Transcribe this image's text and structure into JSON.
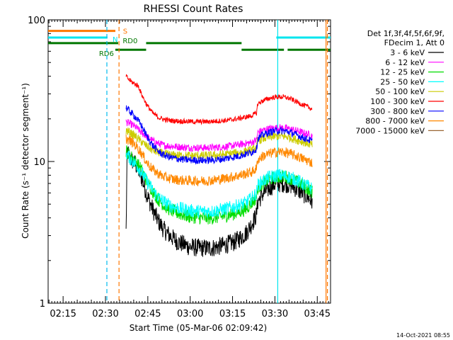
{
  "chart_data": {
    "type": "line",
    "title": "RHESSI Count Rates",
    "xlabel": "Start Time (05-Mar-06 02:09:42)",
    "ylabel": "Count Rate (s⁻¹ detector segment⁻¹)",
    "yscale": "log",
    "ylim": [
      1,
      100
    ],
    "xlim_minutes": [
      0,
      100
    ],
    "x_ticks": [
      "02:15",
      "02:30",
      "02:45",
      "03:00",
      "03:15",
      "03:30",
      "03:45"
    ],
    "y_ticks": [
      "1",
      "10",
      "100"
    ],
    "info": [
      "Det 1f,3f,4f,5f,6f,9f,",
      "FDecim 1, Att 0"
    ],
    "footer_date": "14-Oct-2021 08:55",
    "series": [
      {
        "name": "3 - 6 keV",
        "color": "#000000",
        "noise": 0.55,
        "points": [
          [
            27.6,
            3.2
          ],
          [
            28,
            12
          ],
          [
            29,
            10.5
          ],
          [
            31,
            9.5
          ],
          [
            33,
            7.8
          ],
          [
            35,
            5.8
          ],
          [
            37,
            4.6
          ],
          [
            39,
            3.8
          ],
          [
            41,
            3.3
          ],
          [
            43,
            3.0
          ],
          [
            46,
            2.7
          ],
          [
            50,
            2.5
          ],
          [
            54,
            2.45
          ],
          [
            58,
            2.45
          ],
          [
            62,
            2.55
          ],
          [
            66,
            2.7
          ],
          [
            70,
            3.1
          ],
          [
            72,
            3.6
          ],
          [
            73.8,
            4.2
          ],
          [
            74.2,
            5.2
          ],
          [
            76,
            5.9
          ],
          [
            78,
            6.4
          ],
          [
            80,
            6.9
          ],
          [
            82,
            7.0
          ],
          [
            84,
            7.0
          ],
          [
            86,
            6.8
          ],
          [
            88,
            6.4
          ],
          [
            90,
            6.0
          ],
          [
            92,
            5.6
          ],
          [
            93.5,
            5.2
          ]
        ]
      },
      {
        "name": "6 - 12 keV",
        "color": "#ff00ff",
        "noise": 0.22,
        "points": [
          [
            27.6,
            19
          ],
          [
            29,
            18.5
          ],
          [
            31,
            17.5
          ],
          [
            33,
            16
          ],
          [
            35,
            15
          ],
          [
            37,
            14
          ],
          [
            39,
            13.4
          ],
          [
            41,
            13
          ],
          [
            44,
            12.8
          ],
          [
            48,
            12.6
          ],
          [
            52,
            12.5
          ],
          [
            56,
            12.5
          ],
          [
            60,
            12.6
          ],
          [
            64,
            12.8
          ],
          [
            68,
            13.2
          ],
          [
            72,
            13.6
          ],
          [
            73.8,
            14.2
          ],
          [
            74.2,
            16
          ],
          [
            76,
            16.6
          ],
          [
            78,
            17
          ],
          [
            80,
            17.2
          ],
          [
            82,
            17.3
          ],
          [
            84,
            17.2
          ],
          [
            86,
            16.9
          ],
          [
            88,
            16.5
          ],
          [
            90,
            16
          ],
          [
            92,
            15.6
          ],
          [
            93.5,
            15.2
          ]
        ]
      },
      {
        "name": "12 - 25 keV",
        "color": "#00dd00",
        "noise": 0.4,
        "points": [
          [
            27.6,
            12
          ],
          [
            29,
            11
          ],
          [
            31,
            10
          ],
          [
            33,
            8.8
          ],
          [
            35,
            7.2
          ],
          [
            37,
            6.2
          ],
          [
            39,
            5.4
          ],
          [
            41,
            4.9
          ],
          [
            43,
            4.6
          ],
          [
            46,
            4.3
          ],
          [
            50,
            4.1
          ],
          [
            54,
            4.0
          ],
          [
            58,
            4.0
          ],
          [
            62,
            4.1
          ],
          [
            66,
            4.3
          ],
          [
            70,
            4.6
          ],
          [
            72,
            5.1
          ],
          [
            73.8,
            5.6
          ],
          [
            74.2,
            6.5
          ],
          [
            76,
            7.0
          ],
          [
            78,
            7.4
          ],
          [
            80,
            7.7
          ],
          [
            82,
            7.8
          ],
          [
            84,
            7.8
          ],
          [
            86,
            7.6
          ],
          [
            88,
            7.2
          ],
          [
            90,
            6.8
          ],
          [
            92,
            6.4
          ],
          [
            93.5,
            6.1
          ]
        ]
      },
      {
        "name": "25 - 50 keV",
        "color": "#00ffff",
        "noise": 0.4,
        "points": [
          [
            27.6,
            11.5
          ],
          [
            29,
            10.5
          ],
          [
            31,
            9.6
          ],
          [
            33,
            8.5
          ],
          [
            35,
            7.2
          ],
          [
            37,
            6.3
          ],
          [
            39,
            5.6
          ],
          [
            41,
            5.2
          ],
          [
            43,
            4.9
          ],
          [
            46,
            4.7
          ],
          [
            50,
            4.5
          ],
          [
            54,
            4.45
          ],
          [
            58,
            4.45
          ],
          [
            62,
            4.6
          ],
          [
            66,
            4.8
          ],
          [
            70,
            5.1
          ],
          [
            72,
            5.5
          ],
          [
            73.8,
            6.0
          ],
          [
            74.2,
            6.8
          ],
          [
            76,
            7.3
          ],
          [
            78,
            7.7
          ],
          [
            80,
            7.9
          ],
          [
            82,
            8.0
          ],
          [
            84,
            7.9
          ],
          [
            86,
            7.7
          ],
          [
            88,
            7.4
          ],
          [
            90,
            7.0
          ],
          [
            92,
            6.7
          ],
          [
            93.5,
            6.4
          ]
        ]
      },
      {
        "name": "50 - 100 keV",
        "color": "#cccc00",
        "noise": 0.25,
        "points": [
          [
            27.6,
            16.5
          ],
          [
            29,
            16
          ],
          [
            31,
            15
          ],
          [
            33,
            13.8
          ],
          [
            35,
            12.8
          ],
          [
            37,
            12
          ],
          [
            39,
            11.6
          ],
          [
            41,
            11.3
          ],
          [
            44,
            11.1
          ],
          [
            48,
            11
          ],
          [
            52,
            11
          ],
          [
            56,
            11
          ],
          [
            60,
            11.1
          ],
          [
            64,
            11.3
          ],
          [
            68,
            11.6
          ],
          [
            72,
            12
          ],
          [
            73.8,
            12.6
          ],
          [
            74.2,
            14
          ],
          [
            76,
            14.5
          ],
          [
            78,
            14.8
          ],
          [
            80,
            15
          ],
          [
            82,
            15.1
          ],
          [
            84,
            15
          ],
          [
            86,
            14.7
          ],
          [
            88,
            14.2
          ],
          [
            90,
            13.8
          ],
          [
            92,
            13.4
          ],
          [
            93.5,
            13.1
          ]
        ]
      },
      {
        "name": "100 - 300 keV",
        "color": "#ff0000",
        "noise": 0.15,
        "points": [
          [
            27.6,
            40
          ],
          [
            28.5,
            38
          ],
          [
            30,
            36
          ],
          [
            32,
            34
          ],
          [
            33,
            30
          ],
          [
            35,
            25
          ],
          [
            37,
            22
          ],
          [
            39,
            20.5
          ],
          [
            41,
            19.8
          ],
          [
            44,
            19.4
          ],
          [
            48,
            19.2
          ],
          [
            52,
            19.1
          ],
          [
            56,
            19.1
          ],
          [
            60,
            19.3
          ],
          [
            64,
            19.6
          ],
          [
            68,
            20.2
          ],
          [
            72,
            21
          ],
          [
            73.8,
            22
          ],
          [
            74.2,
            25.5
          ],
          [
            76,
            26.8
          ],
          [
            78,
            27.8
          ],
          [
            80,
            28.4
          ],
          [
            82,
            28.6
          ],
          [
            84,
            28.4
          ],
          [
            86,
            27.6
          ],
          [
            88,
            26.4
          ],
          [
            90,
            25.2
          ],
          [
            92,
            24.2
          ],
          [
            93.5,
            23.5
          ]
        ]
      },
      {
        "name": "300 - 800 keV",
        "color": "#0000ff",
        "noise": 0.22,
        "points": [
          [
            27.6,
            24
          ],
          [
            29,
            22.5
          ],
          [
            31,
            20.5
          ],
          [
            33,
            18
          ],
          [
            35,
            15
          ],
          [
            37,
            13
          ],
          [
            39,
            11.8
          ],
          [
            41,
            11.1
          ],
          [
            44,
            10.6
          ],
          [
            48,
            10.3
          ],
          [
            52,
            10.2
          ],
          [
            56,
            10.2
          ],
          [
            60,
            10.3
          ],
          [
            64,
            10.6
          ],
          [
            68,
            11
          ],
          [
            72,
            11.6
          ],
          [
            73.8,
            12.3
          ],
          [
            74.2,
            14.5
          ],
          [
            76,
            15.4
          ],
          [
            78,
            16
          ],
          [
            80,
            16.4
          ],
          [
            82,
            16.5
          ],
          [
            84,
            16.4
          ],
          [
            86,
            16
          ],
          [
            88,
            15.4
          ],
          [
            90,
            14.8
          ],
          [
            92,
            14.3
          ],
          [
            93.5,
            13.9
          ]
        ]
      },
      {
        "name": "800 - 7000 keV",
        "color": "#ff8800",
        "noise": 0.3,
        "points": [
          [
            27.6,
            14.5
          ],
          [
            29,
            14
          ],
          [
            31,
            13
          ],
          [
            33,
            11.5
          ],
          [
            35,
            9.8
          ],
          [
            37,
            8.8
          ],
          [
            39,
            8.2
          ],
          [
            41,
            7.8
          ],
          [
            44,
            7.5
          ],
          [
            48,
            7.35
          ],
          [
            52,
            7.3
          ],
          [
            56,
            7.3
          ],
          [
            60,
            7.45
          ],
          [
            64,
            7.7
          ],
          [
            68,
            8.0
          ],
          [
            72,
            8.4
          ],
          [
            73.8,
            8.9
          ],
          [
            74.2,
            10.3
          ],
          [
            76,
            10.9
          ],
          [
            78,
            11.3
          ],
          [
            80,
            11.6
          ],
          [
            82,
            11.7
          ],
          [
            84,
            11.6
          ],
          [
            86,
            11.3
          ],
          [
            88,
            10.9
          ],
          [
            90,
            10.5
          ],
          [
            92,
            10.1
          ],
          [
            93.5,
            9.8
          ]
        ]
      },
      {
        "name": "7000 - 15000 keV",
        "color": "#996633",
        "noise": 0.0,
        "points": []
      }
    ],
    "attenuator": [
      {
        "label": "S",
        "color": "#ff7700",
        "level": 83.5,
        "segments": [
          [
            0,
            23.8
          ]
        ]
      },
      {
        "label": "N",
        "color": "#00e5ee",
        "level": 75,
        "segments": [
          [
            0,
            21
          ],
          [
            80.8,
            100
          ]
        ]
      },
      {
        "label": "RD0",
        "color": "#007700",
        "level": 68.5,
        "segments": [
          [
            0,
            24.8
          ],
          [
            34.7,
            68.5
          ]
        ]
      },
      {
        "label": "RD6",
        "color": "#007700",
        "level": 61.5,
        "segments": [
          [
            23.8,
            34.7
          ],
          [
            68.5,
            83.5
          ],
          [
            84.8,
            100
          ]
        ]
      }
    ],
    "vlines": [
      {
        "x": 20.8,
        "color": "#00bbee",
        "style": "dashed"
      },
      {
        "x": 25.1,
        "color": "#ff7700",
        "style": "dashed"
      },
      {
        "x": 81.3,
        "color": "#00e5ee",
        "style": "solid"
      },
      {
        "x": 98.4,
        "color": "#ff7700",
        "style": "solid"
      },
      {
        "x": 98.9,
        "color": "#ff7700",
        "style": "dashed"
      }
    ]
  }
}
